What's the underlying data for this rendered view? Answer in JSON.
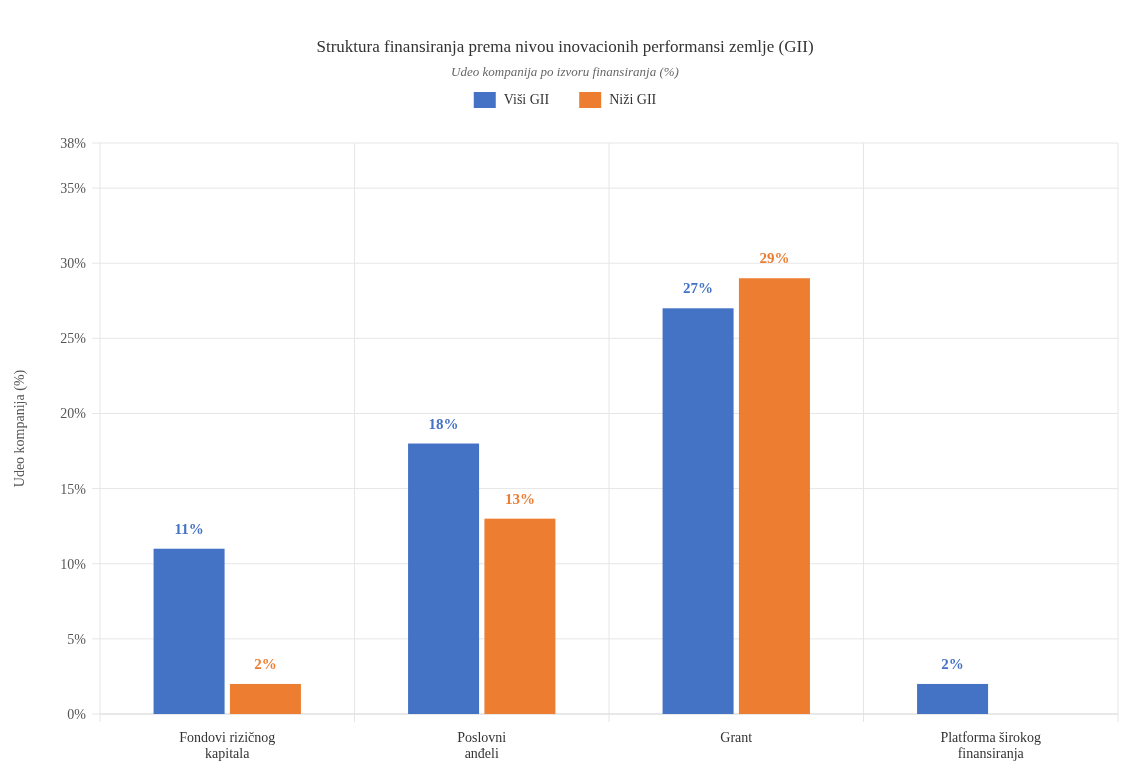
{
  "chart_data": {
    "type": "bar",
    "title": "Struktura finansiranja prema nivou inovacionih performansi zemlje (GII)",
    "subtitle": "Udeo kompanija po izvoru finansiranja (%)",
    "ylabel": "Udeo kompanija (%)",
    "categories": [
      "Fondovi rizičnog kapitala",
      "Poslovni anđeli",
      "Grant",
      "Platforma širokog finansiranja"
    ],
    "series": [
      {
        "name": "Viši GII",
        "color": "#4472c4",
        "values": [
          11,
          18,
          27,
          2
        ],
        "value_labels": [
          "11%",
          "18%",
          "27%",
          "2%"
        ]
      },
      {
        "name": "Niži GII",
        "color": "#ed7d31",
        "values": [
          2,
          13,
          29,
          null
        ],
        "value_labels": [
          "2%",
          "13%",
          "29%",
          null
        ]
      }
    ],
    "ylim": [
      0,
      38
    ],
    "yticks": [
      {
        "value": 0,
        "label": "0%"
      },
      {
        "value": 5,
        "label": "5%"
      },
      {
        "value": 10,
        "label": "10%"
      },
      {
        "value": 15,
        "label": "15%"
      },
      {
        "value": 20,
        "label": "20%"
      },
      {
        "value": 25,
        "label": "25%"
      },
      {
        "value": 30,
        "label": "30%"
      },
      {
        "value": 35,
        "label": "35%"
      },
      {
        "value": 38,
        "label": "38%"
      }
    ],
    "grid": true,
    "legend": "top"
  }
}
